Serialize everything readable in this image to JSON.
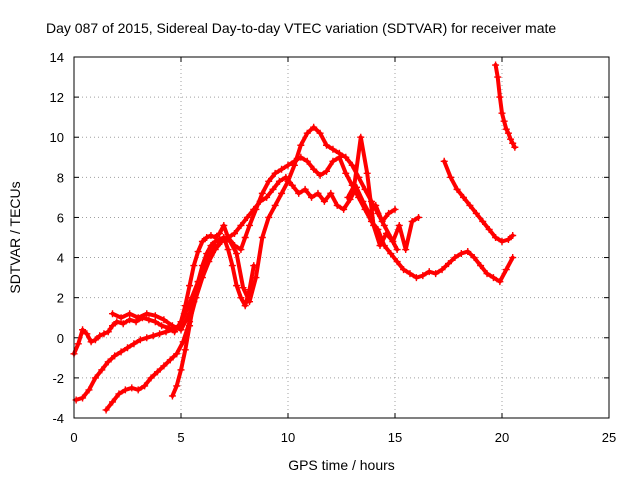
{
  "chart_data": {
    "type": "scatter",
    "title": "Day 087 of 2015, Sidereal Day-to-day VTEC variation (SDTVAR) for receiver mate",
    "xlabel": "GPS time / hours",
    "ylabel": "SDTVAR / TECUs",
    "xlim": [
      0,
      25
    ],
    "ylim": [
      -4,
      14
    ],
    "xticks": [
      "0",
      "5",
      "10",
      "15",
      "20",
      "25"
    ],
    "yticks": [
      "-4",
      "-2",
      "0",
      "2",
      "4",
      "6",
      "8",
      "10",
      "12",
      "14"
    ],
    "grid": true,
    "marker": "plus",
    "color": "#ff0000",
    "series": [
      {
        "x": [
          0,
          0.2,
          0.4,
          0.6,
          0.8,
          1.0,
          1.2,
          1.4,
          1.6,
          1.8,
          2.0,
          2.3,
          2.6,
          2.9,
          3.2,
          3.5,
          3.8,
          4.1,
          4.4,
          4.7,
          5.0,
          5.2,
          5.4,
          5.6,
          5.8,
          6.0,
          6.2,
          6.4,
          6.6,
          6.8,
          7.0,
          7.2,
          7.5,
          7.8,
          8.0,
          8.2,
          8.5,
          8.8,
          9.1,
          9.4,
          9.7,
          10.0,
          10.3,
          10.6,
          10.9,
          11.2,
          11.5,
          11.8,
          12.1,
          12.4,
          12.7,
          13.0,
          13.3,
          13.6,
          13.9,
          14.2,
          14.5,
          14.8,
          15.1,
          15.4,
          15.7,
          16.0,
          16.3,
          16.6,
          16.9,
          17.2,
          17.5,
          17.8,
          18.1,
          18.4,
          18.7,
          19.0,
          19.3,
          19.6,
          19.9,
          20.2,
          20.5
        ],
        "y": [
          -0.8,
          -0.3,
          0.4,
          0.2,
          -0.2,
          -0.1,
          0.1,
          0.2,
          0.3,
          0.6,
          0.8,
          0.7,
          0.9,
          0.8,
          1.0,
          0.9,
          0.8,
          0.6,
          0.5,
          0.3,
          0.8,
          1.6,
          2.6,
          3.6,
          4.3,
          4.8,
          5.0,
          5.1,
          5.0,
          5.2,
          5.6,
          5.0,
          4.6,
          4.4,
          5.0,
          5.6,
          6.4,
          7.2,
          7.8,
          8.2,
          8.4,
          8.6,
          8.8,
          9.0,
          8.8,
          8.4,
          8.1,
          8.3,
          8.8,
          9.0,
          8.2,
          7.6,
          7.0,
          6.4,
          5.8,
          5.4,
          4.6,
          4.2,
          3.8,
          3.4,
          3.2,
          3.0,
          3.1,
          3.3,
          3.2,
          3.4,
          3.7,
          4.0,
          4.2,
          4.3,
          4.0,
          3.6,
          3.2,
          3.0,
          2.8,
          3.4,
          4.0
        ]
      },
      {
        "x": [
          0.1,
          0.4,
          0.7,
          1.0,
          1.3,
          1.6,
          1.9,
          2.2,
          2.5,
          2.8,
          3.1,
          3.4,
          3.7,
          4.0,
          4.3,
          4.6,
          4.9,
          5.2,
          5.5,
          5.8,
          6.1,
          6.4,
          6.7,
          7.0,
          7.3,
          7.6,
          7.9,
          8.2,
          8.5,
          8.8,
          9.1,
          9.4,
          9.7,
          10.0,
          10.3,
          10.6,
          10.9,
          11.2,
          11.5,
          11.8,
          12.1,
          12.4,
          12.7,
          13.0,
          13.3,
          13.6,
          13.9,
          14.2,
          14.5,
          14.8,
          15.1
        ],
        "y": [
          -3.1,
          -3.0,
          -2.6,
          -2.0,
          -1.6,
          -1.2,
          -0.9,
          -0.7,
          -0.5,
          -0.3,
          -0.1,
          0.0,
          0.1,
          0.2,
          0.3,
          0.4,
          0.6,
          1.2,
          2.0,
          2.8,
          3.5,
          4.1,
          4.6,
          5.0,
          4.8,
          4.2,
          2.5,
          1.8,
          3.0,
          5.0,
          6.0,
          6.6,
          7.2,
          7.8,
          8.6,
          9.6,
          10.2,
          10.5,
          10.2,
          9.6,
          9.4,
          9.2,
          9.0,
          8.6,
          8.0,
          7.4,
          6.8,
          6.2,
          5.6,
          5.0,
          4.4
        ]
      },
      {
        "x": [
          1.5,
          1.8,
          2.1,
          2.4,
          2.7,
          3.0,
          3.3,
          3.6,
          3.9,
          4.2,
          4.5,
          4.8,
          5.1,
          5.4,
          5.7,
          6.0,
          6.3,
          6.6,
          6.9,
          7.2,
          7.5,
          7.8,
          8.1,
          8.4,
          8.7,
          9.0,
          9.3,
          9.6,
          9.9,
          10.2,
          10.5,
          10.8,
          11.1,
          11.4,
          11.7,
          12.0,
          12.3,
          12.6,
          12.9,
          13.2,
          13.5,
          13.8,
          14.1,
          14.4,
          14.7,
          15.0
        ],
        "y": [
          -3.6,
          -3.2,
          -2.8,
          -2.6,
          -2.5,
          -2.6,
          -2.4,
          -2.0,
          -1.7,
          -1.4,
          -1.1,
          -0.8,
          -0.2,
          0.8,
          2.0,
          3.0,
          3.8,
          4.4,
          4.8,
          5.0,
          5.2,
          5.6,
          6.0,
          6.4,
          6.8,
          7.0,
          7.4,
          7.8,
          8.0,
          7.6,
          7.2,
          7.4,
          7.0,
          7.2,
          6.8,
          7.2,
          6.6,
          6.4,
          6.9,
          7.5,
          6.8,
          6.2,
          6.6,
          5.8,
          6.2,
          6.4
        ]
      },
      {
        "x": [
          4.6,
          4.8,
          5.0,
          5.2,
          5.4,
          5.6,
          5.8,
          6.0,
          6.2,
          6.4,
          6.6,
          6.8,
          7.0,
          7.2,
          7.4,
          7.6,
          7.8,
          8.0,
          8.2,
          8.4
        ],
        "y": [
          -2.9,
          -2.4,
          -1.6,
          -0.6,
          0.6,
          1.8,
          2.8,
          3.6,
          4.2,
          4.6,
          4.8,
          4.9,
          5.0,
          4.4,
          3.6,
          2.6,
          2.0,
          1.6,
          2.4,
          3.6
        ]
      },
      {
        "x": [
          1.8,
          2.2,
          2.6,
          3.0,
          3.4,
          3.8,
          4.2,
          4.6,
          5.0,
          5.4,
          5.8,
          6.2,
          6.6
        ],
        "y": [
          1.2,
          1.0,
          1.2,
          1.0,
          1.2,
          1.1,
          0.9,
          0.6,
          0.4,
          1.2,
          2.6,
          3.8,
          4.6
        ]
      },
      {
        "x": [
          12.8,
          13.1,
          13.4,
          13.7,
          14.0,
          14.3,
          14.6,
          14.9,
          15.2,
          15.5,
          15.8,
          16.1
        ],
        "y": [
          7.0,
          7.6,
          10.0,
          8.2,
          5.6,
          4.6,
          5.2,
          4.8,
          5.6,
          4.4,
          5.8,
          6.0
        ]
      },
      {
        "x": [
          17.3,
          17.6,
          17.9,
          18.2,
          18.5,
          18.8,
          19.1,
          19.4,
          19.7,
          20.0,
          20.3,
          20.5
        ],
        "y": [
          8.8,
          8.0,
          7.4,
          7.0,
          6.6,
          6.2,
          5.8,
          5.4,
          5.0,
          4.8,
          4.9,
          5.1
        ]
      },
      {
        "x": [
          19.7,
          19.8,
          19.9,
          20.0,
          20.1,
          20.2,
          20.3,
          20.4,
          20.5,
          20.6
        ],
        "y": [
          13.6,
          13.0,
          12.0,
          11.2,
          10.8,
          10.4,
          10.2,
          9.9,
          9.7,
          9.5
        ]
      }
    ]
  }
}
